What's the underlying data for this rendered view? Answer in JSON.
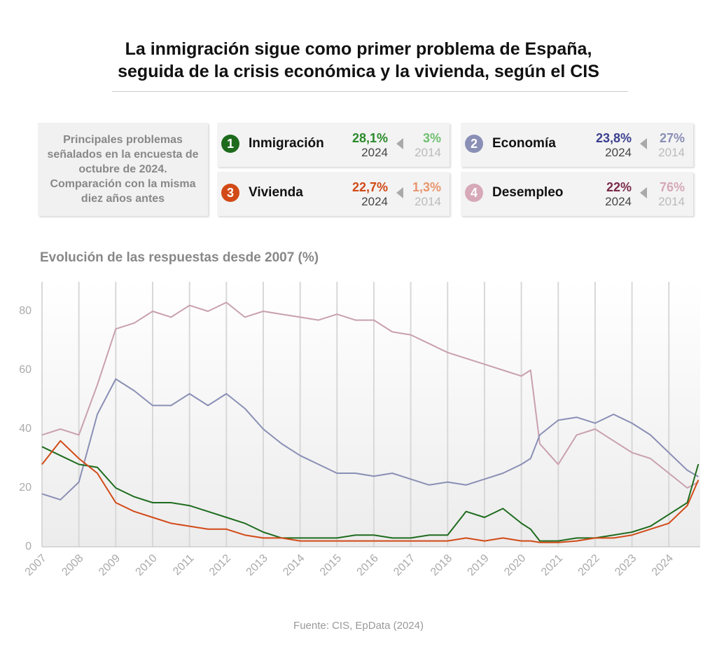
{
  "header": {
    "title_line1": "La inmigración sigue como primer problema de España,",
    "title_line2": "seguida de la crisis económica y la vivienda, según el CIS"
  },
  "summary": {
    "intro": "Principales problemas señalados en la encuesta de octubre de 2024. Comparación con la misma diez años antes",
    "items": [
      {
        "rank": "1",
        "name": "Inmigración",
        "value": "28,1%",
        "year": "2024",
        "prev": "3%",
        "prev_year": "2014",
        "badge_color": "#1e6b1e",
        "value_color": "#2a8a2a",
        "prev_color": "#6fbf6f"
      },
      {
        "rank": "2",
        "name": "Economía",
        "value": "23,8%",
        "year": "2024",
        "prev": "27%",
        "prev_year": "2014",
        "badge_color": "#8a8fb5",
        "value_color": "#3b3f8f",
        "prev_color": "#8a8fb5"
      },
      {
        "rank": "3",
        "name": "Vivienda",
        "value": "22,7%",
        "year": "2024",
        "prev": "1,3%",
        "prev_year": "2014",
        "badge_color": "#d24a17",
        "value_color": "#d24a17",
        "prev_color": "#e8956f"
      },
      {
        "rank": "4",
        "name": "Desempleo",
        "value": "22%",
        "year": "2024",
        "prev": "76%",
        "prev_year": "2014",
        "badge_color": "#d6a8b8",
        "value_color": "#7a2a4a",
        "prev_color": "#d6a8b8"
      }
    ]
  },
  "chart_data": {
    "type": "line",
    "title": "Evolución de las respuestas desde 2007 (%)",
    "x": [
      2007,
      2007.5,
      2008,
      2008.5,
      2009,
      2009.5,
      2010,
      2010.5,
      2011,
      2011.5,
      2012,
      2012.5,
      2013,
      2013.5,
      2014,
      2014.5,
      2015,
      2015.5,
      2016,
      2016.5,
      2017,
      2017.5,
      2018,
      2018.5,
      2019,
      2019.5,
      2020,
      2020.25,
      2020.5,
      2021,
      2021.5,
      2022,
      2022.5,
      2023,
      2023.5,
      2024,
      2024.5,
      2024.8
    ],
    "series": [
      {
        "name": "Desempleo",
        "color": "#c9a0b0",
        "values": [
          38,
          40,
          38,
          55,
          74,
          76,
          80,
          78,
          82,
          80,
          83,
          78,
          80,
          79,
          78,
          77,
          79,
          77,
          77,
          73,
          72,
          69,
          66,
          64,
          62,
          60,
          58,
          60,
          35,
          28,
          38,
          40,
          36,
          32,
          30,
          25,
          20,
          22
        ]
      },
      {
        "name": "Economía",
        "color": "#8a8fb5",
        "values": [
          18,
          16,
          22,
          45,
          57,
          53,
          48,
          48,
          52,
          48,
          52,
          47,
          40,
          35,
          31,
          28,
          25,
          25,
          24,
          25,
          23,
          21,
          22,
          21,
          23,
          25,
          28,
          30,
          38,
          43,
          44,
          42,
          45,
          42,
          38,
          32,
          26,
          23.8
        ]
      },
      {
        "name": "Inmigración",
        "color": "#1e6b1e",
        "values": [
          34,
          31,
          28,
          27,
          20,
          17,
          15,
          15,
          14,
          12,
          10,
          8,
          5,
          3,
          3,
          3,
          3,
          4,
          4,
          3,
          3,
          4,
          4,
          12,
          10,
          13,
          8,
          6,
          2,
          2,
          3,
          3,
          4,
          5,
          7,
          11,
          15,
          28.1
        ]
      },
      {
        "name": "Vivienda",
        "color": "#d24a17",
        "values": [
          28,
          36,
          30,
          25,
          15,
          12,
          10,
          8,
          7,
          6,
          6,
          4,
          3,
          3,
          2,
          2,
          2,
          2,
          2,
          2,
          2,
          2,
          2,
          3,
          2,
          3,
          2,
          2,
          1.5,
          1.5,
          2,
          3,
          3,
          4,
          6,
          8,
          14,
          22.7
        ]
      }
    ],
    "xlim": [
      2007,
      2024.85
    ],
    "ylim": [
      0,
      90
    ],
    "xticks": [
      2007,
      2008,
      2009,
      2010,
      2011,
      2012,
      2013,
      2014,
      2015,
      2016,
      2017,
      2018,
      2019,
      2020,
      2021,
      2022,
      2023,
      2024
    ],
    "yticks": [
      0,
      20,
      40,
      60,
      80
    ],
    "grid": true,
    "source": "Fuente: CIS, EpData (2024)"
  }
}
